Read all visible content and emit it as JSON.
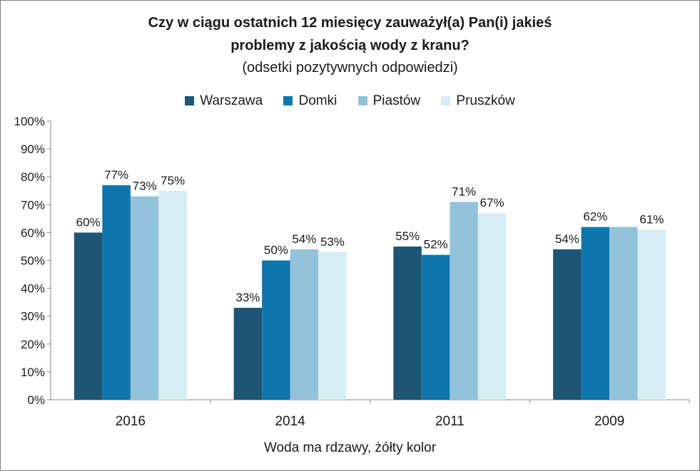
{
  "chart_data": {
    "type": "bar",
    "title": "Czy w ciągu ostatnich 12 miesięcy zauważył(a) Pan(i) jakieś",
    "title_line2": "problemy z jakością wody z kranu?",
    "subtitle": "(odsetki pozytywnych odpowiedzi)",
    "xlabel": "Woda ma rdzawy, żółty kolor",
    "ylabel": "",
    "categories": [
      "2016",
      "2014",
      "2011",
      "2009"
    ],
    "series": [
      {
        "name": "Warszawa",
        "color": "#1e5574",
        "values": [
          60,
          33,
          55,
          54
        ],
        "labels": [
          "60%",
          "33%",
          "55%",
          "54%"
        ]
      },
      {
        "name": "Domki",
        "color": "#0f75ad",
        "values": [
          77,
          50,
          52,
          62
        ],
        "labels": [
          "77%",
          "50%",
          "52%",
          "62%"
        ]
      },
      {
        "name": "Piastów",
        "color": "#92c3db",
        "values": [
          73,
          54,
          71,
          62
        ],
        "labels": [
          "73%",
          "54%",
          "71%",
          ""
        ]
      },
      {
        "name": "Pruszków",
        "color": "#d6eef3",
        "values": [
          75,
          53,
          67,
          61
        ],
        "labels": [
          "75%",
          "53%",
          "67%",
          "61%"
        ]
      }
    ],
    "ylim": [
      0,
      100
    ],
    "yticks": [
      "0%",
      "10%",
      "20%",
      "30%",
      "40%",
      "50%",
      "60%",
      "70%",
      "80%",
      "90%",
      "100%"
    ],
    "grid": false,
    "legend_position": "top"
  }
}
